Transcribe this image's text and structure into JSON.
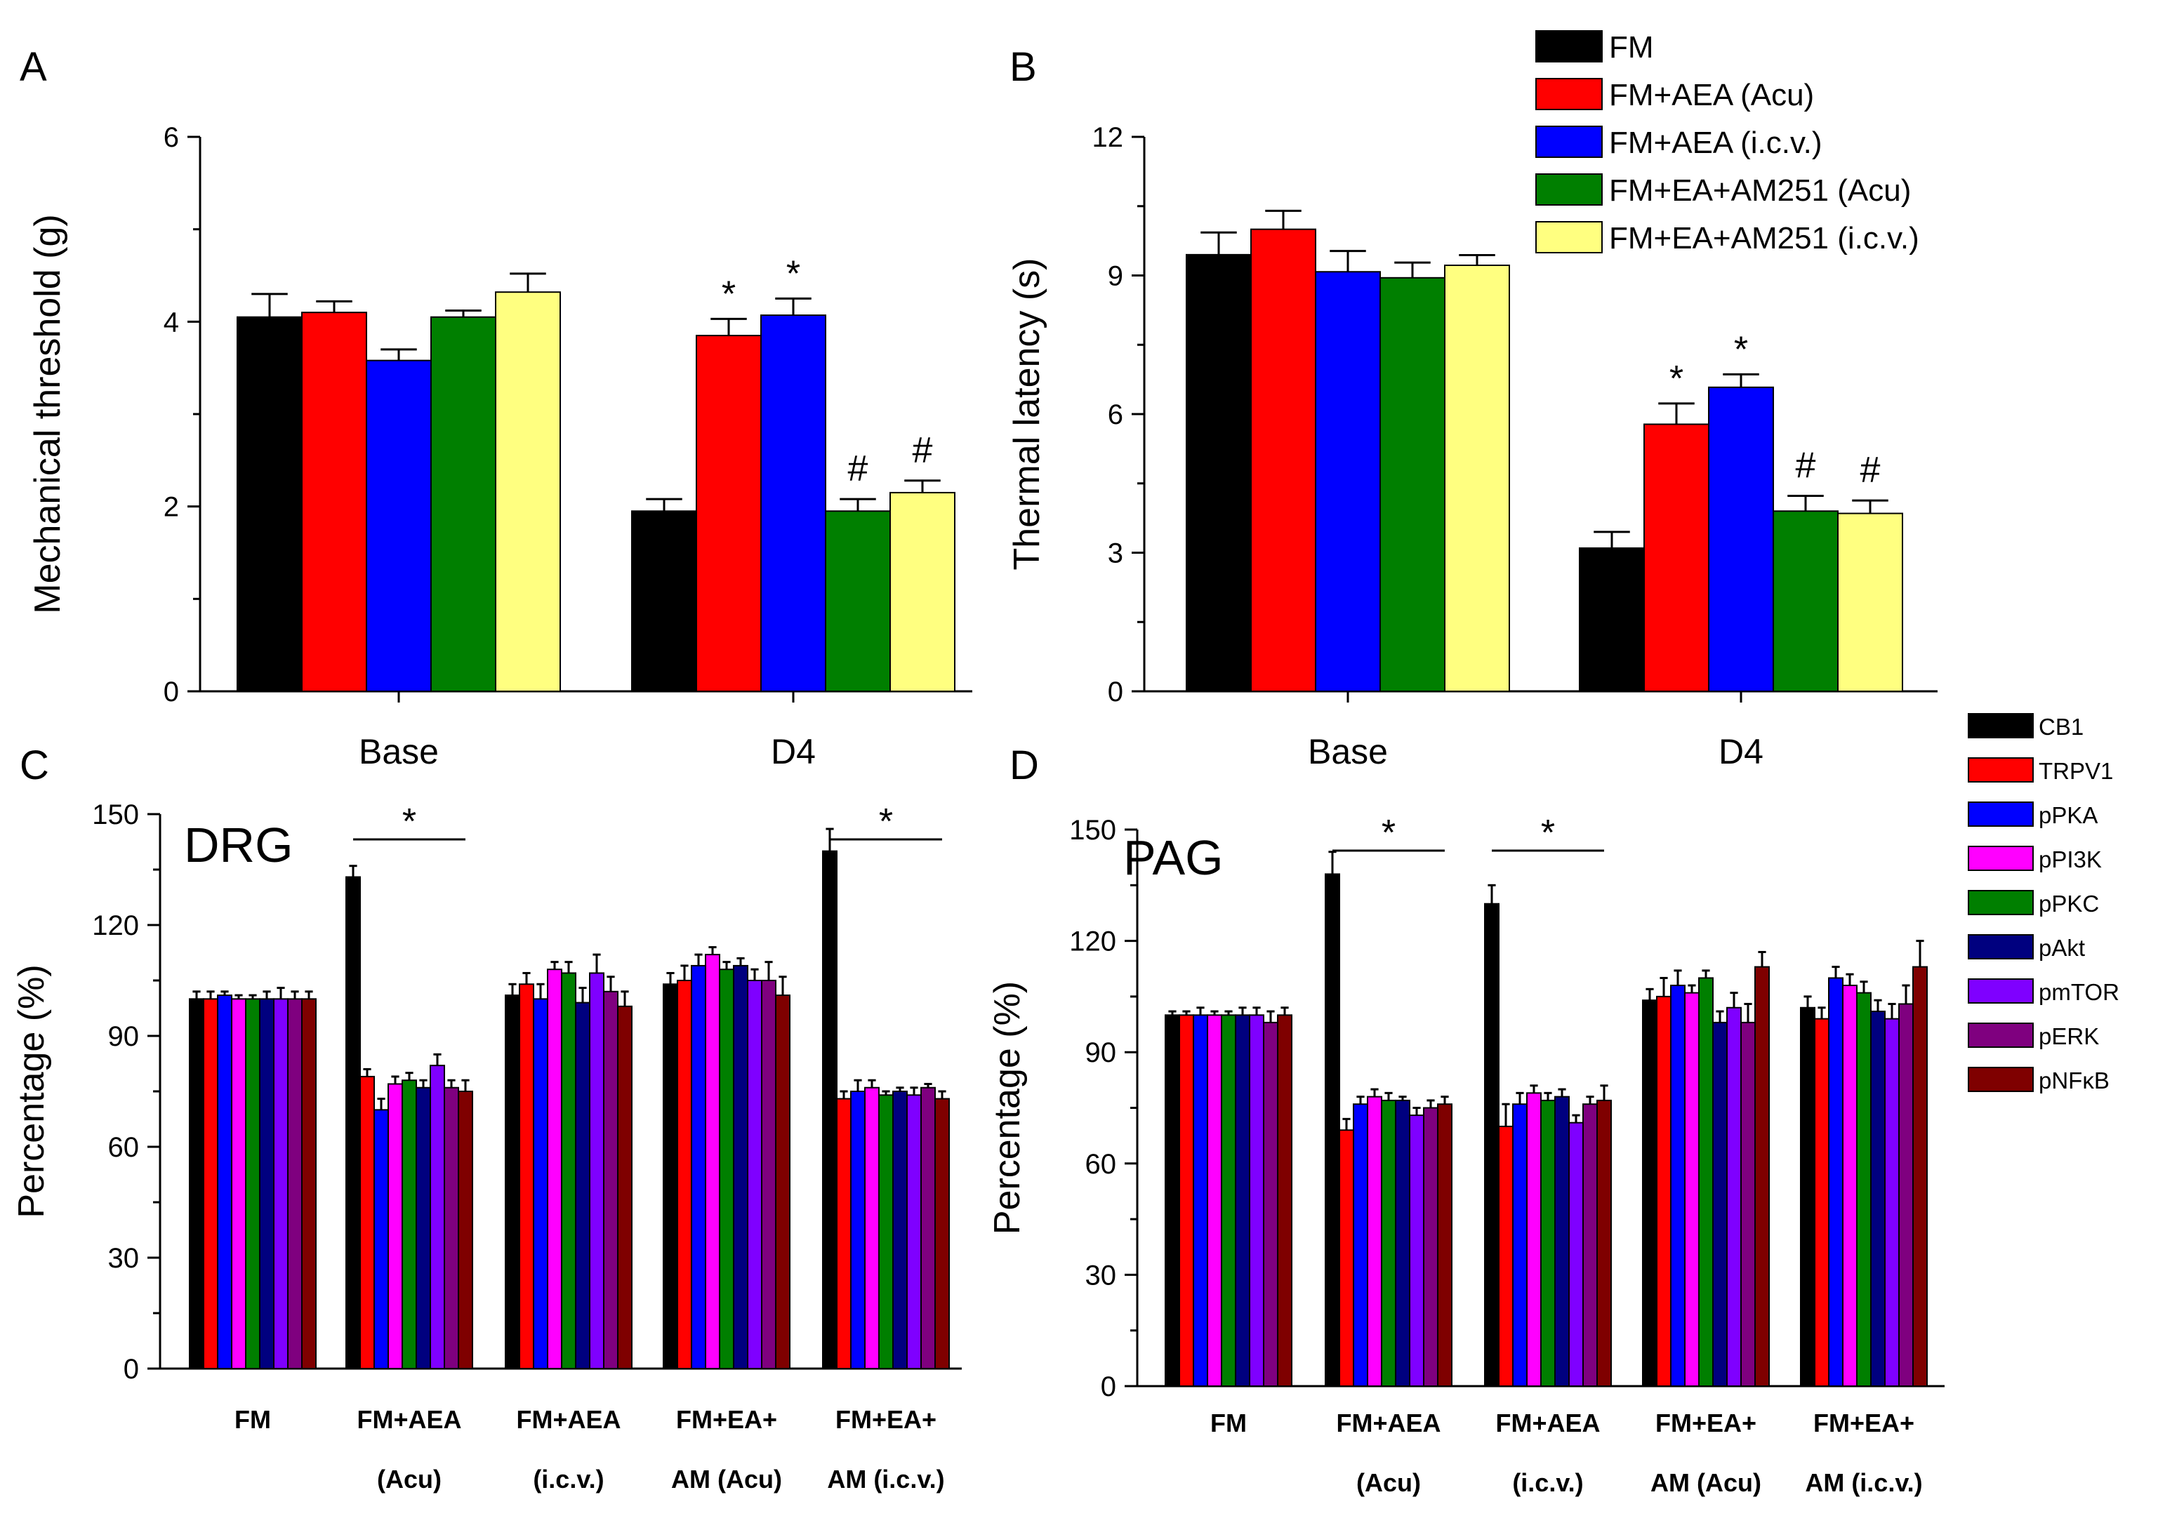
{
  "chart_data": [
    {
      "panel": "A",
      "type": "bar",
      "ylabel": "Mechanical threshold (g)",
      "ylim": [
        0,
        6
      ],
      "yticks": [
        0,
        2,
        4,
        6
      ],
      "categories": [
        "Base",
        "D4"
      ],
      "series": [
        {
          "name": "FM",
          "values": [
            4.05,
            1.95
          ],
          "errors": [
            0.25,
            0.13
          ],
          "color": "#000000"
        },
        {
          "name": "FM+AEA (Acu)",
          "values": [
            4.1,
            3.85
          ],
          "errors": [
            0.12,
            0.18
          ],
          "color": "#ff0000"
        },
        {
          "name": "FM+AEA (i.c.v.)",
          "values": [
            3.58,
            4.07
          ],
          "errors": [
            0.12,
            0.18
          ],
          "color": "#0000ff"
        },
        {
          "name": "FM+EA+AM251 (Acu)",
          "values": [
            4.05,
            1.95
          ],
          "errors": [
            0.07,
            0.13
          ],
          "color": "#007f00"
        },
        {
          "name": "FM+EA+AM251 (i.c.v.)",
          "values": [
            4.32,
            2.15
          ],
          "errors": [
            0.2,
            0.13
          ],
          "color": "#ffff80"
        }
      ],
      "annotations": [
        {
          "category": "D4",
          "series": 1,
          "text": "*"
        },
        {
          "category": "D4",
          "series": 2,
          "text": "*"
        },
        {
          "category": "D4",
          "series": 3,
          "text": "#"
        },
        {
          "category": "D4",
          "series": 4,
          "text": "#"
        }
      ]
    },
    {
      "panel": "B",
      "type": "bar",
      "ylabel": "Thermal latency (s)",
      "ylim": [
        0,
        12
      ],
      "yticks": [
        0,
        3,
        6,
        9,
        12
      ],
      "categories": [
        "Base",
        "D4"
      ],
      "series": [
        {
          "name": "FM",
          "values": [
            9.45,
            3.1
          ],
          "errors": [
            0.48,
            0.35
          ],
          "color": "#000000"
        },
        {
          "name": "FM+AEA (Acu)",
          "values": [
            10.0,
            5.78
          ],
          "errors": [
            0.4,
            0.45
          ],
          "color": "#ff0000"
        },
        {
          "name": "FM+AEA (i.c.v.)",
          "values": [
            9.08,
            6.58
          ],
          "errors": [
            0.45,
            0.28
          ],
          "color": "#0000ff"
        },
        {
          "name": "FM+EA+AM251 (Acu)",
          "values": [
            8.95,
            3.9
          ],
          "errors": [
            0.33,
            0.33
          ],
          "color": "#007f00"
        },
        {
          "name": "FM+EA+AM251 (i.c.v.)",
          "values": [
            9.22,
            3.85
          ],
          "errors": [
            0.22,
            0.28
          ],
          "color": "#ffff80"
        }
      ],
      "annotations": [
        {
          "category": "D4",
          "series": 1,
          "text": "*"
        },
        {
          "category": "D4",
          "series": 2,
          "text": "*"
        },
        {
          "category": "D4",
          "series": 3,
          "text": "#"
        },
        {
          "category": "D4",
          "series": 4,
          "text": "#"
        }
      ]
    },
    {
      "panel": "C",
      "type": "bar",
      "tissue": "DRG",
      "ylabel": "Percentage (%)",
      "ylim": [
        0,
        150
      ],
      "yticks": [
        0,
        30,
        60,
        90,
        120,
        150
      ],
      "groups": [
        [
          "FM",
          ""
        ],
        [
          "FM+AEA",
          "(Acu)"
        ],
        [
          "FM+AEA",
          "(i.c.v.)"
        ],
        [
          "FM+EA+",
          "AM (Acu)"
        ],
        [
          "FM+EA+",
          "AM (i.c.v.)"
        ]
      ],
      "series_names": [
        "CB1",
        "TRPV1",
        "pPKA",
        "pPI3K",
        "pPKC",
        "pAkt",
        "pmTOR",
        "pERK",
        "pNFκB"
      ],
      "values": [
        [
          100,
          100,
          101,
          100,
          100,
          100,
          100,
          100,
          100
        ],
        [
          133,
          79,
          70,
          77,
          78,
          76,
          82,
          76,
          75
        ],
        [
          101,
          104,
          100,
          108,
          107,
          99,
          107,
          102,
          98
        ],
        [
          104,
          105,
          109,
          112,
          108,
          109,
          105,
          105,
          101
        ],
        [
          140,
          73,
          75,
          76,
          74,
          75,
          74,
          76,
          73
        ]
      ],
      "errors": [
        [
          2,
          2,
          1,
          1,
          1,
          2,
          3,
          2,
          2
        ],
        [
          3,
          2,
          3,
          2,
          2,
          2,
          3,
          2,
          3
        ],
        [
          3,
          3,
          4,
          2,
          3,
          4,
          5,
          4,
          4
        ],
        [
          3,
          4,
          3,
          2,
          2,
          2,
          3,
          5,
          5
        ],
        [
          6,
          2,
          3,
          2,
          1,
          1,
          2,
          1,
          2
        ]
      ],
      "significance": [
        {
          "from_group": 1,
          "to_group": 1,
          "text": "*"
        },
        {
          "from_group": 4,
          "to_group": 4,
          "text": "*"
        }
      ]
    },
    {
      "panel": "D",
      "type": "bar",
      "tissue": "PAG",
      "ylabel": "Percentage (%)",
      "ylim": [
        0,
        150
      ],
      "yticks": [
        0,
        30,
        60,
        90,
        120,
        150
      ],
      "groups": [
        [
          "FM",
          ""
        ],
        [
          "FM+AEA",
          "(Acu)"
        ],
        [
          "FM+AEA",
          "(i.c.v.)"
        ],
        [
          "FM+EA+",
          "AM (Acu)"
        ],
        [
          "FM+EA+",
          "AM (i.c.v.)"
        ]
      ],
      "series_names": [
        "CB1",
        "TRPV1",
        "pPKA",
        "pPI3K",
        "pPKC",
        "pAkt",
        "pmTOR",
        "pERK",
        "pNFκB"
      ],
      "values": [
        [
          100,
          100,
          100,
          100,
          100,
          100,
          100,
          98,
          100
        ],
        [
          138,
          69,
          76,
          78,
          77,
          77,
          73,
          75,
          76
        ],
        [
          130,
          70,
          76,
          79,
          77,
          78,
          71,
          76,
          77
        ],
        [
          104,
          105,
          108,
          106,
          110,
          98,
          102,
          98,
          113
        ],
        [
          102,
          99,
          110,
          108,
          106,
          101,
          99,
          103,
          113
        ]
      ],
      "errors": [
        [
          1,
          1,
          2,
          1,
          1,
          2,
          2,
          3,
          2
        ],
        [
          6,
          3,
          2,
          2,
          2,
          1,
          2,
          2,
          2
        ],
        [
          5,
          6,
          3,
          2,
          2,
          2,
          2,
          2,
          4
        ],
        [
          3,
          5,
          4,
          2,
          2,
          3,
          4,
          5,
          4
        ],
        [
          3,
          3,
          3,
          3,
          3,
          3,
          4,
          5,
          7
        ]
      ],
      "significance": [
        {
          "from_group": 1,
          "to_group": 1,
          "text": "*"
        },
        {
          "from_group": 2,
          "to_group": 2,
          "text": "*"
        }
      ]
    }
  ],
  "legend_top": {
    "entries": [
      {
        "label": "FM",
        "color": "#000000"
      },
      {
        "label": "FM+AEA (Acu)",
        "color": "#ff0000"
      },
      {
        "label": "FM+AEA (i.c.v.)",
        "color": "#0000ff"
      },
      {
        "label": "FM+EA+AM251 (Acu)",
        "color": "#007f00"
      },
      {
        "label": "FM+EA+AM251 (i.c.v.)",
        "color": "#ffff80"
      }
    ]
  },
  "legend_bottom": {
    "entries": [
      {
        "label": "CB1",
        "color": "#000000"
      },
      {
        "label": "TRPV1",
        "color": "#ff0000"
      },
      {
        "label": "pPKA",
        "color": "#0000ff"
      },
      {
        "label": "pPI3K",
        "color": "#ff00ff"
      },
      {
        "label": "pPKC",
        "color": "#007f00"
      },
      {
        "label": "pAkt",
        "color": "#00007f"
      },
      {
        "label": "pmTOR",
        "color": "#7f00ff"
      },
      {
        "label": "pERK",
        "color": "#7f007f"
      },
      {
        "label": "pNFκB",
        "color": "#7f0000"
      }
    ]
  }
}
